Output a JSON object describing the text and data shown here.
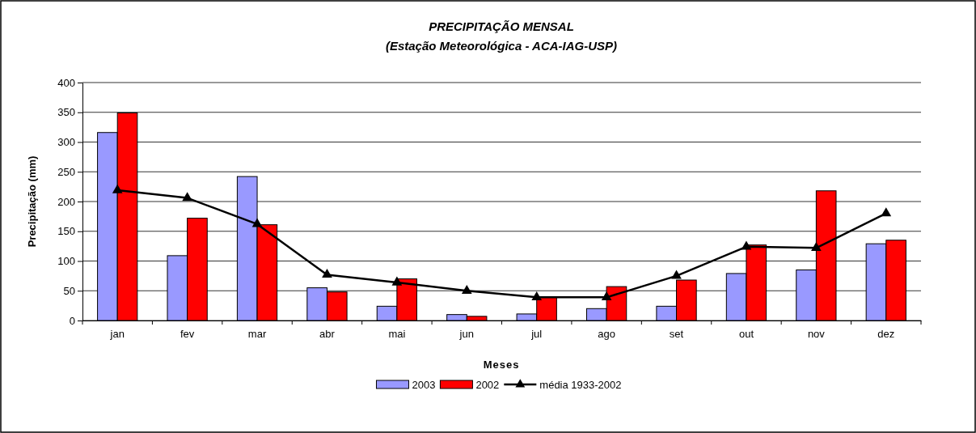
{
  "chart_data": {
    "type": "bar",
    "title": "PRECIPITAÇÃO MENSAL",
    "subtitle": "(Estação Meteorológica - ACA-IAG-USP)",
    "xlabel": "Meses",
    "ylabel": "Precipitação (mm)",
    "categories": [
      "jan",
      "fev",
      "mar",
      "abr",
      "mai",
      "jun",
      "jul",
      "ago",
      "set",
      "out",
      "nov",
      "dez"
    ],
    "series": [
      {
        "name": "2003",
        "color": "#9999ff",
        "values": [
          316,
          109,
          242,
          55,
          24,
          10,
          11,
          20,
          24,
          79,
          85,
          129
        ]
      },
      {
        "name": "2002",
        "color": "#ff0000",
        "values": [
          349,
          172,
          161,
          48,
          70,
          7,
          39,
          57,
          68,
          127,
          218,
          135
        ]
      },
      {
        "name": "média 1933-2002",
        "type": "line",
        "color": "#000000",
        "marker": "triangle",
        "values": [
          219,
          206,
          162,
          77,
          64,
          50,
          39,
          39,
          75,
          124,
          122,
          180
        ]
      }
    ],
    "ylim": [
      0,
      400
    ],
    "yticks": [
      0,
      50,
      100,
      150,
      200,
      250,
      300,
      350,
      400
    ],
    "grid": "y",
    "legend": "bottom"
  }
}
